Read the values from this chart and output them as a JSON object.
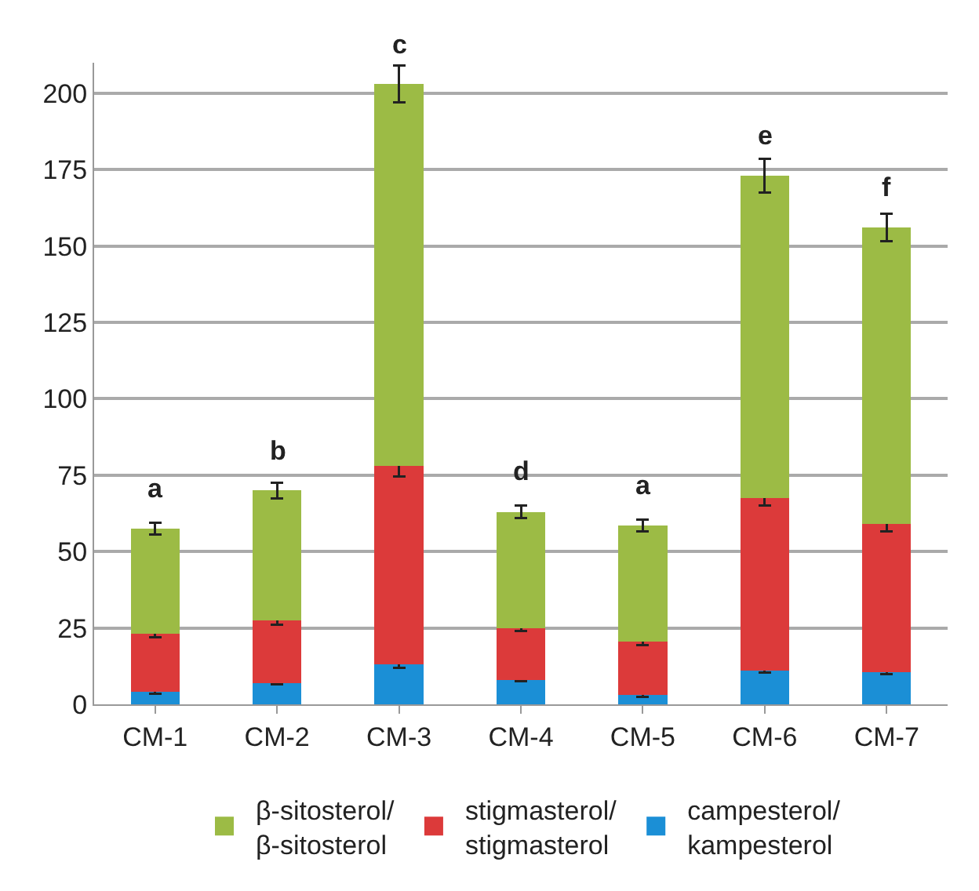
{
  "chart_data": {
    "type": "bar",
    "stacked": true,
    "categories": [
      "CM-1",
      "CM-2",
      "CM-3",
      "CM-4",
      "CM-5",
      "CM-6",
      "CM-7"
    ],
    "series": [
      {
        "name": "campesterol/\nkampesterol",
        "color": "#1b8fd6",
        "values": [
          4,
          7,
          13,
          8,
          3,
          11,
          10.5
        ],
        "errors": [
          0.5,
          0.5,
          1,
          0.5,
          0.5,
          0.5,
          0.5
        ]
      },
      {
        "name": "stigmasterol/\nstigmasterol",
        "color": "#dc3a3a",
        "values": [
          19,
          20.5,
          65,
          17,
          17.5,
          56.5,
          48.5
        ],
        "errors": [
          1,
          1.5,
          3.5,
          1,
          1,
          2.5,
          2.5
        ]
      },
      {
        "name": "β-sitosterol/\nβ-sitosterol",
        "color": "#9cbb45",
        "values": [
          34.5,
          42.5,
          125,
          38,
          38,
          105.5,
          97
        ],
        "errors": [
          2,
          2.5,
          6,
          2,
          2,
          5.5,
          4.5
        ]
      }
    ],
    "ylim": [
      0,
      210
    ],
    "yticks": [
      0,
      25,
      50,
      75,
      100,
      125,
      150,
      175,
      200
    ],
    "grid": "y",
    "legend": "bottom",
    "annotations": [
      {
        "text": "a",
        "x": "CM-1",
        "y": 57.5
      },
      {
        "text": "b",
        "x": "CM-2",
        "y": 70
      },
      {
        "text": "c",
        "x": "CM-3",
        "y": 203
      },
      {
        "text": "d",
        "x": "CM-4",
        "y": 63
      },
      {
        "text": "a",
        "x": "CM-5",
        "y": 58.5
      },
      {
        "text": "e",
        "x": "CM-6",
        "y": 173
      },
      {
        "text": "f",
        "x": "CM-7",
        "y": 156
      }
    ]
  }
}
